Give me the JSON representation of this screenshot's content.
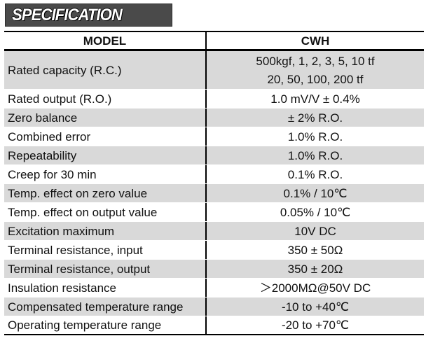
{
  "banner": {
    "title": "SPECIFICATION"
  },
  "table": {
    "header": {
      "model": "MODEL",
      "cwh": "CWH"
    },
    "rows": [
      {
        "label": "Rated capacity (R.C.)",
        "value": "500kgf, 1, 2, 3, 5, 10 tf",
        "value2": "20, 50, 100, 200 tf"
      },
      {
        "label": "Rated output (R.O.)",
        "value": "1.0 mV/V ± 0.4%"
      },
      {
        "label": "Zero balance",
        "value": "± 2% R.O."
      },
      {
        "label": "Combined error",
        "value": "1.0% R.O."
      },
      {
        "label": "Repeatability",
        "value": "1.0% R.O."
      },
      {
        "label": "Creep for 30 min",
        "value": "0.1% R.O."
      },
      {
        "label": "Temp. effect on zero value",
        "value": "0.1% / 10℃"
      },
      {
        "label": "Temp. effect on output value",
        "value": "0.05% / 10℃"
      },
      {
        "label": "Excitation maximum",
        "value": "10V DC"
      },
      {
        "label": "Terminal resistance, input",
        "value": "350 ± 50Ω"
      },
      {
        "label": "Terminal resistance, output",
        "value": "350 ± 20Ω"
      },
      {
        "label": "Insulation resistance",
        "value": "＞2000MΩ@50V DC"
      },
      {
        "label": "Compensated temperature range",
        "value": "-10 to +40℃"
      },
      {
        "label": "Operating temperature range",
        "value": "-20 to +70℃"
      }
    ]
  }
}
